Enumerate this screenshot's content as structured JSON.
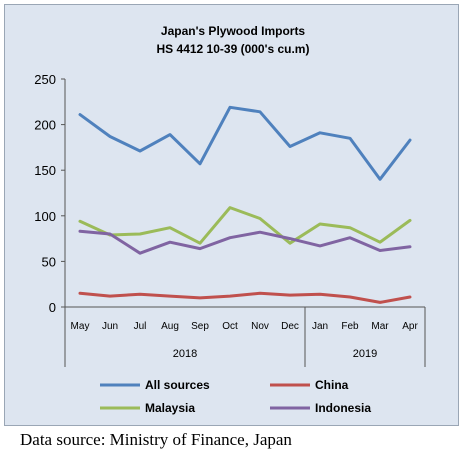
{
  "chart_data": {
    "type": "line",
    "title": "Japan's Plywood Imports",
    "subtitle": "HS 4412 10-39  (000's cu.m)",
    "xlabel": "",
    "ylabel": "",
    "categories": [
      "May",
      "Jun",
      "Jul",
      "Aug",
      "Sep",
      "Oct",
      "Nov",
      "Dec",
      "Jan",
      "Feb",
      "Mar",
      "Apr"
    ],
    "year_groups": [
      {
        "label": "2018",
        "months": 8
      },
      {
        "label": "2019",
        "months": 4
      }
    ],
    "ylim": [
      0,
      250
    ],
    "yticks": [
      0,
      50,
      100,
      150,
      200,
      250
    ],
    "grid": false,
    "legend_position": "bottom",
    "series": [
      {
        "name": "All sources",
        "color": "#4f81bd",
        "values": [
          211,
          187,
          171,
          189,
          157,
          219,
          214,
          176,
          191,
          185,
          140,
          183
        ]
      },
      {
        "name": "China",
        "color": "#c0504d",
        "values": [
          15,
          12,
          14,
          12,
          10,
          12,
          15,
          13,
          14,
          11,
          5,
          11
        ]
      },
      {
        "name": "Malaysia",
        "color": "#9bbb59",
        "values": [
          94,
          79,
          80,
          87,
          70,
          109,
          97,
          70,
          91,
          87,
          71,
          95
        ]
      },
      {
        "name": "Indonesia",
        "color": "#8064a2",
        "values": [
          83,
          80,
          59,
          71,
          64,
          76,
          82,
          75,
          67,
          76,
          62,
          66
        ]
      }
    ]
  },
  "caption": "Data source: Ministry of Finance, Japan"
}
